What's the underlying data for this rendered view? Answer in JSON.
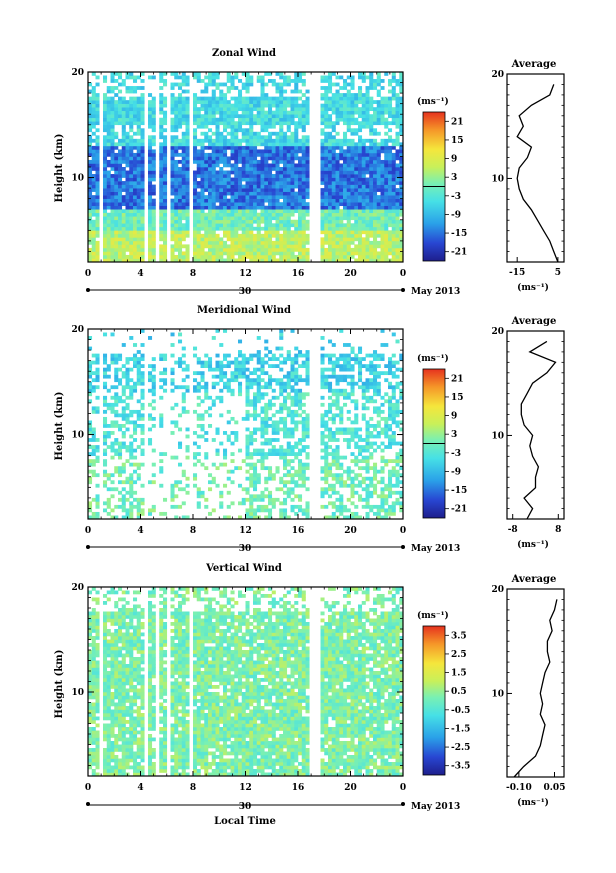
{
  "chart_data": [
    {
      "type": "heatmap",
      "title": "Zonal Wind",
      "ylabel": "Height (km)",
      "ylim": [
        2,
        20
      ],
      "y_ticks": [
        "10",
        "20"
      ],
      "xlim": [
        0,
        24
      ],
      "x_ticks": [
        "0",
        "4",
        "8",
        "12",
        "16",
        "20",
        "0"
      ],
      "date_label": "30",
      "month_label": "May 2013",
      "colorbar": {
        "unit": "(ms⁻¹)",
        "range": [
          -24,
          24
        ],
        "ticks": [
          "21",
          "15",
          "9",
          "3",
          "-3",
          "-9",
          "-15",
          "-21"
        ],
        "zero_line": true
      },
      "pattern": [
        {
          "height_range": [
            2,
            5
          ],
          "value_approx": 6
        },
        {
          "height_range": [
            5,
            7
          ],
          "value_approx": 0
        },
        {
          "height_range": [
            7,
            13
          ],
          "value_approx": -15
        },
        {
          "height_range": [
            14,
            20
          ],
          "value_approx": -5
        }
      ],
      "average_profile": {
        "title": "Average",
        "xlabel": "(ms⁻¹)",
        "x_ticks": [
          "-15",
          "5"
        ],
        "xlim": [
          -20,
          8
        ],
        "y_ticks": [
          "10",
          "20"
        ],
        "heights": [
          2,
          3,
          4,
          5,
          6,
          7,
          8,
          9,
          10,
          11,
          12,
          13,
          14,
          15,
          16,
          17,
          18,
          19
        ],
        "values": [
          5,
          3,
          1,
          -2,
          -5,
          -8,
          -12,
          -14,
          -15,
          -14,
          -10,
          -8,
          -15,
          -12,
          -14,
          -8,
          1,
          3
        ]
      }
    },
    {
      "type": "heatmap",
      "title": "Meridional Wind",
      "ylabel": "Height (km)",
      "ylim": [
        2,
        20
      ],
      "y_ticks": [
        "10",
        "20"
      ],
      "xlim": [
        0,
        24
      ],
      "x_ticks": [
        "0",
        "4",
        "8",
        "12",
        "16",
        "20",
        "0"
      ],
      "date_label": "30",
      "month_label": "May 2013",
      "colorbar": {
        "unit": "(ms⁻¹)",
        "range": [
          -24,
          24
        ],
        "ticks": [
          "21",
          "15",
          "9",
          "3",
          "-3",
          "-9",
          "-15",
          "-21"
        ],
        "zero_line": true
      },
      "pattern": [
        {
          "height_range": [
            2,
            8
          ],
          "value_approx": 0
        },
        {
          "height_range": [
            8,
            14
          ],
          "value_approx": -3
        },
        {
          "height_range": [
            14,
            20
          ],
          "value_approx": -6
        }
      ],
      "average_profile": {
        "title": "Average",
        "xlabel": "(ms⁻¹)",
        "x_ticks": [
          "-8",
          "8"
        ],
        "xlim": [
          -10,
          10
        ],
        "y_ticks": [
          "10",
          "20"
        ],
        "heights": [
          2,
          3,
          4,
          5,
          6,
          7,
          8,
          9,
          10,
          11,
          12,
          13,
          14,
          15,
          16,
          17,
          18,
          19
        ],
        "values": [
          -3,
          -1,
          -4,
          0,
          0,
          1,
          -1,
          -2,
          -1,
          -4,
          -5,
          -5,
          -3,
          -1,
          4,
          7,
          -2,
          4
        ]
      }
    },
    {
      "type": "heatmap",
      "title": "Vertical Wind",
      "ylabel": "Height (km)",
      "xlabel": "Local Time",
      "ylim": [
        2,
        20
      ],
      "y_ticks": [
        "10",
        "20"
      ],
      "xlim": [
        0,
        24
      ],
      "x_ticks": [
        "0",
        "4",
        "8",
        "12",
        "16",
        "20",
        "0"
      ],
      "date_label": "30",
      "month_label": "May 2013",
      "colorbar": {
        "unit": "(ms⁻¹)",
        "range": [
          -4,
          4
        ],
        "ticks": [
          "3.5",
          "2.5",
          "1.5",
          "0.5",
          "-0.5",
          "-1.5",
          "-2.5",
          "-3.5"
        ],
        "zero_line": false
      },
      "pattern": [
        {
          "height_range": [
            2,
            20
          ],
          "value_approx": 0.2
        }
      ],
      "average_profile": {
        "title": "Average",
        "xlabel": "(ms⁻¹)",
        "x_ticks": [
          "-0.10",
          "0.05"
        ],
        "xlim": [
          -0.15,
          0.09
        ],
        "y_ticks": [
          "10",
          "20"
        ],
        "heights": [
          2,
          3,
          4,
          5,
          6,
          7,
          8,
          9,
          10,
          11,
          12,
          13,
          14,
          15,
          16,
          17,
          18,
          19
        ],
        "values": [
          -0.12,
          -0.08,
          -0.03,
          -0.01,
          0.0,
          0.01,
          -0.01,
          0.0,
          -0.01,
          0.0,
          0.01,
          0.03,
          0.02,
          0.02,
          0.04,
          0.03,
          0.05,
          0.06
        ]
      }
    }
  ]
}
